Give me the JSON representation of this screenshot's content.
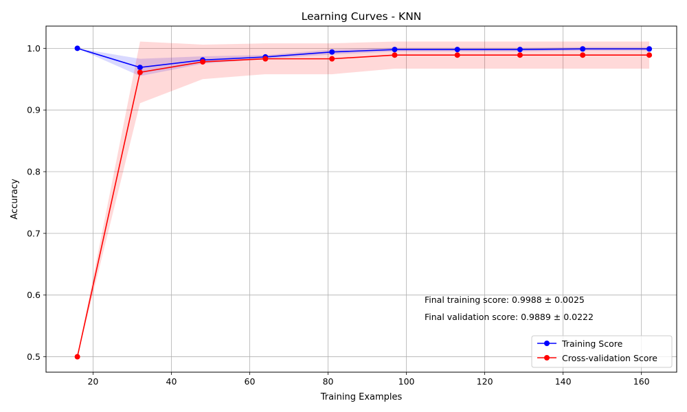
{
  "chart_data": {
    "type": "line",
    "title": "Learning Curves - KNN",
    "xlabel": "Training Examples",
    "ylabel": "Accuracy",
    "xlim": [
      8,
      169
    ],
    "ylim": [
      0.475,
      1.036
    ],
    "xticks": [
      20,
      40,
      60,
      80,
      100,
      120,
      140,
      160
    ],
    "yticks": [
      0.5,
      0.6,
      0.7,
      0.8,
      0.9,
      1.0
    ],
    "xtick_labels": [
      "20",
      "40",
      "60",
      "80",
      "100",
      "120",
      "140",
      "160"
    ],
    "ytick_labels": [
      "0.5",
      "0.6",
      "0.7",
      "0.8",
      "0.9",
      "1.0"
    ],
    "grid": true,
    "legend_position": "bottom-right",
    "x": [
      16,
      32,
      48,
      64,
      81,
      97,
      113,
      129,
      145,
      162
    ],
    "series": [
      {
        "name": "Training Score",
        "color": "#0000ff",
        "fill_color": "#0000ff",
        "values": [
          1.0,
          0.969,
          0.981,
          0.986,
          0.994,
          0.998,
          0.998,
          0.998,
          0.999,
          0.999
        ],
        "lower": [
          1.0,
          0.955,
          0.975,
          0.983,
          0.99,
          0.995,
          0.995,
          0.995,
          0.996,
          0.996
        ],
        "upper": [
          1.0,
          0.983,
          0.987,
          0.989,
          0.998,
          1.001,
          1.001,
          1.001,
          1.002,
          1.002
        ]
      },
      {
        "name": "Cross-validation Score",
        "color": "#ff0000",
        "fill_color": "#ff0000",
        "values": [
          0.5,
          0.961,
          0.978,
          0.983,
          0.983,
          0.989,
          0.989,
          0.989,
          0.989,
          0.989
        ],
        "lower": [
          0.5,
          0.911,
          0.95,
          0.958,
          0.958,
          0.967,
          0.967,
          0.967,
          0.967,
          0.967
        ],
        "upper": [
          0.5,
          1.011,
          1.006,
          1.008,
          1.008,
          1.011,
          1.011,
          1.011,
          1.011,
          1.011
        ]
      }
    ],
    "annotations": [
      "Final training score: 0.9988 ± 0.0025",
      "Final validation score: 0.9889 ± 0.0222"
    ]
  }
}
